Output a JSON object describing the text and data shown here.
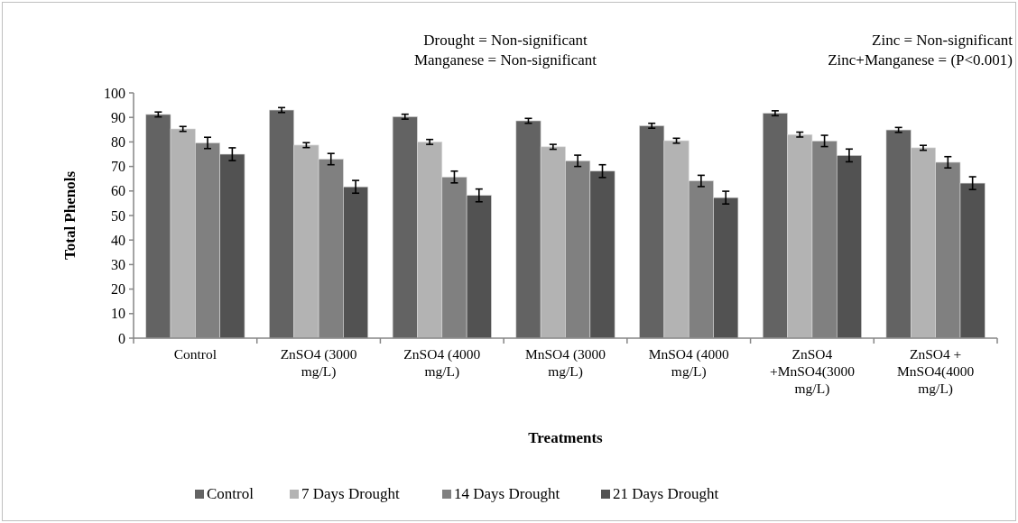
{
  "chart_data": {
    "type": "bar",
    "xlabel": "Treatments",
    "ylabel": "Total Phenols",
    "categories": [
      "Control",
      "ZnSO4 (3000 mg/L)",
      "ZnSO4 (4000 mg/L)",
      "MnSO4 (3000 mg/L)",
      "MnSO4 (4000 mg/L)",
      "ZnSO4 +MnSO4(3000 mg/L)",
      "ZnSO4 + MnSO4(4000 mg/L)"
    ],
    "series": [
      {
        "name": "Control",
        "color": "#636363",
        "values": [
          91.2,
          93,
          90.3,
          88.6,
          86.6,
          91.7,
          84.9
        ],
        "errors": [
          1,
          1,
          1,
          1,
          1,
          1,
          1
        ]
      },
      {
        "name": "7 Days Drought",
        "color": "#b3b3b3",
        "values": [
          85.3,
          78.7,
          80,
          78,
          80.5,
          83,
          77.6
        ],
        "errors": [
          1,
          1,
          1,
          1,
          1,
          1,
          1
        ]
      },
      {
        "name": "14 Days Drought",
        "color": "#808080",
        "values": [
          79.6,
          73,
          65.7,
          72.3,
          64.1,
          80.4,
          71.7
        ],
        "errors": [
          2.3,
          2.3,
          2.4,
          2.3,
          2.3,
          2.3,
          2.3
        ]
      },
      {
        "name": "21 Days Drought",
        "color": "#525252",
        "values": [
          75,
          61.7,
          58.2,
          68.1,
          57.3,
          74.5,
          63.2
        ],
        "errors": [
          2.6,
          2.6,
          2.6,
          2.6,
          2.6,
          2.6,
          2.6
        ]
      }
    ],
    "ylim": [
      0,
      100
    ],
    "yticks": [
      0,
      10,
      20,
      30,
      40,
      50,
      60,
      70,
      80,
      90,
      100
    ],
    "grid": false,
    "legend": "bottom",
    "annotations": [
      "Drought = Non-significant",
      "Manganese = Non-significant",
      "Zinc = Non-significant",
      "Zinc+Manganese = (P<0.001)"
    ]
  }
}
